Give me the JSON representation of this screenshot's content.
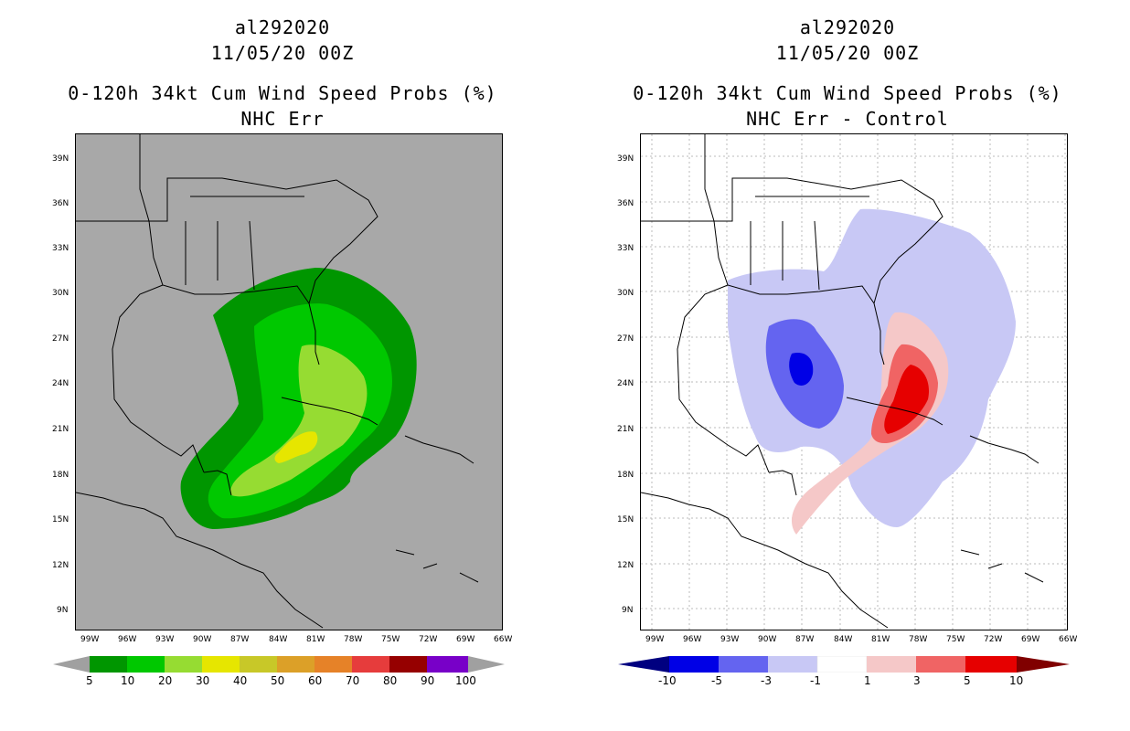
{
  "left": {
    "title1": "al292020",
    "title2": "11/05/20 00Z",
    "title3": "0-120h 34kt Cum Wind Speed Probs (%)",
    "title4": "NHC Err",
    "colorbar": {
      "labels": [
        "5",
        "10",
        "20",
        "30",
        "40",
        "50",
        "60",
        "70",
        "80",
        "90",
        "100"
      ],
      "colors": [
        "#009600",
        "#00c800",
        "#96dc32",
        "#e6e600",
        "#c8c828",
        "#dca028",
        "#e68228",
        "#e63c3c",
        "#960000",
        "#7800c8"
      ],
      "arrow_color": "#a0a0a0"
    },
    "background": "#a8a8a8"
  },
  "right": {
    "title1": "al292020",
    "title2": "11/05/20 00Z",
    "title3": "0-120h 34kt Cum Wind Speed Probs (%)",
    "title4": "NHC Err - Control",
    "colorbar": {
      "labels": [
        "-10",
        "-5",
        "-3",
        "-1",
        "1",
        "3",
        "5",
        "10"
      ],
      "colors": [
        "#0000e6",
        "#6464f0",
        "#c8c8f5",
        "#ffffff",
        "#f5c8c8",
        "#f06464",
        "#e60000"
      ],
      "arrow_low": "#000080",
      "arrow_high": "#800000"
    },
    "background": "#ffffff"
  },
  "axes": {
    "lat_labels": [
      "39N",
      "36N",
      "33N",
      "30N",
      "27N",
      "24N",
      "21N",
      "18N",
      "15N",
      "12N",
      "9N"
    ],
    "lon_labels": [
      "99W",
      "96W",
      "93W",
      "90W",
      "87W",
      "84W",
      "81W",
      "78W",
      "75W",
      "72W",
      "69W",
      "66W"
    ]
  }
}
